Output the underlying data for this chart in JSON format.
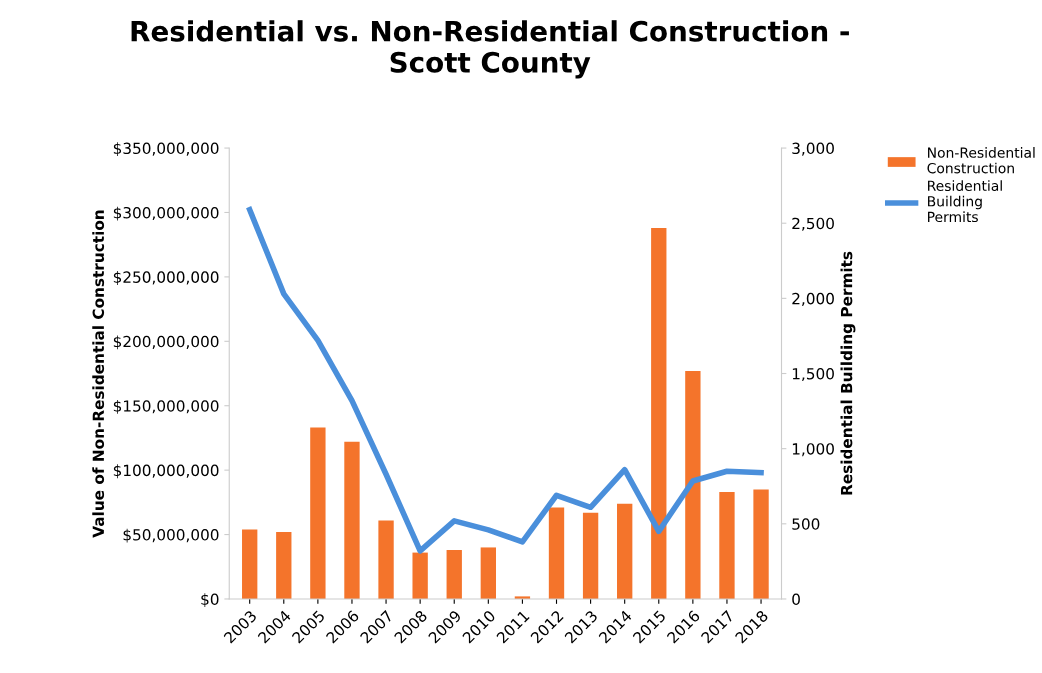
{
  "chart_data": {
    "type": "bar",
    "title": "Residential vs. Non-Residential Construction -\nScott County",
    "xlabel": null,
    "ylabel": "Value of Non-Residential Construction",
    "y2label": "Residential Building Permits",
    "categories": [
      "2003",
      "2004",
      "2005",
      "2006",
      "2007",
      "2008",
      "2009",
      "2010",
      "2011",
      "2012",
      "2013",
      "2014",
      "2015",
      "2016",
      "2017",
      "2018"
    ],
    "series": [
      {
        "name": "Non-Residential Construction",
        "color": "#f4742b",
        "values": [
          54000000,
          52000000,
          133000000,
          122000000,
          61000000,
          36000000,
          38000000,
          40000000,
          2000000,
          71000000,
          67000000,
          74000000,
          288000000,
          177000000,
          83000000,
          85000000
        ]
      },
      {
        "name": "Residential Building Permits",
        "type": "line",
        "axis": "y2",
        "color": "#4a8fdb",
        "values": [
          2590,
          2030,
          1720,
          1320,
          830,
          320,
          520,
          460,
          380,
          690,
          610,
          860,
          450,
          785,
          850,
          840
        ]
      }
    ],
    "ylim": [
      0,
      350000000
    ],
    "yticks": [
      {
        "value": 0,
        "label": "$0"
      },
      {
        "value": 50000000,
        "label": "$50,000,000"
      },
      {
        "value": 100000000,
        "label": "$100,000,000"
      },
      {
        "value": 150000000,
        "label": "$150,000,000"
      },
      {
        "value": 200000000,
        "label": "$200,000,000"
      },
      {
        "value": 250000000,
        "label": "$250,000,000"
      },
      {
        "value": 300000000,
        "label": "$300,000,000"
      },
      {
        "value": 350000000,
        "label": "$350,000,000"
      }
    ],
    "y2lim": [
      0,
      3000
    ],
    "y2ticks": [
      0,
      500,
      {
        "value": 1000,
        "label": "1,000"
      },
      {
        "value": 1500,
        "label": "1,500"
      },
      {
        "value": 2000,
        "label": "2,000"
      },
      {
        "value": 2500,
        "label": "2,500"
      },
      {
        "value": 3000,
        "label": "3,000"
      }
    ],
    "grid": false,
    "legend": "top right"
  }
}
